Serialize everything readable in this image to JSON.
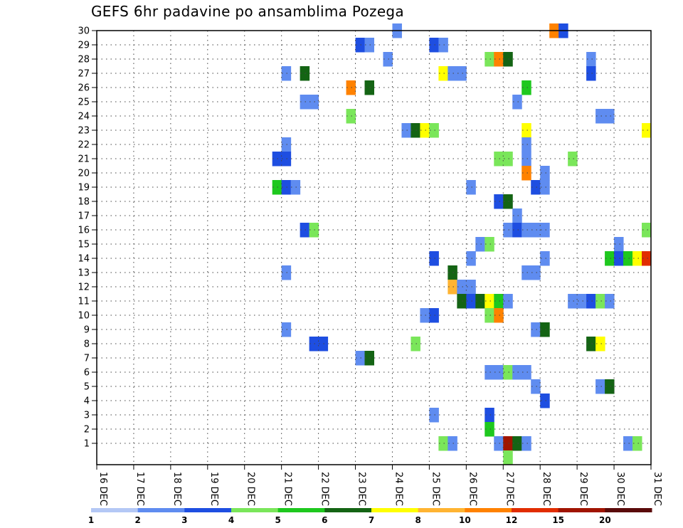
{
  "chart_data": {
    "type": "heatmap",
    "title": "GEFS 6hr padavine po ansamblima Pozega",
    "xlabel": "",
    "ylabel": "",
    "x_ticks": [
      "16 DEC",
      "17 DEC",
      "18 DEC",
      "19 DEC",
      "20 DEC",
      "21 DEC",
      "22 DEC",
      "23 DEC",
      "24 DEC",
      "25 DEC",
      "26 DEC",
      "27 DEC",
      "28 DEC",
      "29 DEC",
      "30 DEC",
      "31 DEC"
    ],
    "xlim": [
      "16 DEC 00Z",
      "31 DEC 00Z"
    ],
    "y_ticks": [
      1,
      2,
      3,
      4,
      5,
      6,
      7,
      8,
      9,
      10,
      11,
      12,
      13,
      14,
      15,
      16,
      17,
      18,
      19,
      20,
      21,
      22,
      23,
      24,
      25,
      26,
      27,
      28,
      29,
      30
    ],
    "ylim": [
      0,
      30
    ],
    "grid": true,
    "legend": {
      "position": "bottom",
      "labels": [
        "1",
        "2",
        "3",
        "4",
        "5",
        "6",
        "7",
        "8",
        "10",
        "12",
        "15",
        "20"
      ],
      "colors": [
        "#b4c8f5",
        "#5f8cf0",
        "#1e4ee1",
        "#7ae65a",
        "#1ec81e",
        "#146414",
        "#ffff00",
        "#ffb432",
        "#ff8200",
        "#e12d00",
        "#a01400",
        "#5a0a0a"
      ]
    },
    "cells": [
      {
        "m": 30,
        "d": 24.0,
        "v": 1
      },
      {
        "m": 30,
        "d": 28.25,
        "v": 8
      },
      {
        "m": 30,
        "d": 28.5,
        "v": 2
      },
      {
        "m": 29,
        "d": 23.0,
        "v": 2
      },
      {
        "m": 29,
        "d": 23.25,
        "v": 1
      },
      {
        "m": 29,
        "d": 25.0,
        "v": 2
      },
      {
        "m": 29,
        "d": 25.25,
        "v": 1
      },
      {
        "m": 28,
        "d": 23.75,
        "v": 1
      },
      {
        "m": 28,
        "d": 26.5,
        "v": 3
      },
      {
        "m": 28,
        "d": 26.75,
        "v": 8
      },
      {
        "m": 28,
        "d": 27.0,
        "v": 5
      },
      {
        "m": 28,
        "d": 29.25,
        "v": 1
      },
      {
        "m": 27,
        "d": 21.0,
        "v": 1
      },
      {
        "m": 27,
        "d": 21.5,
        "v": 5
      },
      {
        "m": 27,
        "d": 25.25,
        "v": 6
      },
      {
        "m": 27,
        "d": 25.5,
        "v": 1
      },
      {
        "m": 27,
        "d": 25.75,
        "v": 1
      },
      {
        "m": 27,
        "d": 29.25,
        "v": 2
      },
      {
        "m": 26,
        "d": 22.75,
        "v": 8
      },
      {
        "m": 26,
        "d": 23.25,
        "v": 5
      },
      {
        "m": 26,
        "d": 27.5,
        "v": 4
      },
      {
        "m": 25,
        "d": 21.5,
        "v": 1
      },
      {
        "m": 25,
        "d": 21.75,
        "v": 1
      },
      {
        "m": 25,
        "d": 27.25,
        "v": 1
      },
      {
        "m": 24,
        "d": 22.75,
        "v": 3
      },
      {
        "m": 24,
        "d": 29.5,
        "v": 1
      },
      {
        "m": 24,
        "d": 29.75,
        "v": 1
      },
      {
        "m": 23,
        "d": 24.25,
        "v": 1
      },
      {
        "m": 23,
        "d": 24.5,
        "v": 5
      },
      {
        "m": 23,
        "d": 24.75,
        "v": 6
      },
      {
        "m": 23,
        "d": 25.0,
        "v": 3
      },
      {
        "m": 23,
        "d": 27.5,
        "v": 6
      },
      {
        "m": 23,
        "d": 30.75,
        "v": 6
      },
      {
        "m": 22,
        "d": 21.0,
        "v": 1
      },
      {
        "m": 22,
        "d": 27.5,
        "v": 1
      },
      {
        "m": 21,
        "d": 20.75,
        "v": 2
      },
      {
        "m": 21,
        "d": 21.0,
        "v": 2
      },
      {
        "m": 21,
        "d": 26.75,
        "v": 3
      },
      {
        "m": 21,
        "d": 27.0,
        "v": 3
      },
      {
        "m": 21,
        "d": 27.5,
        "v": 1
      },
      {
        "m": 21,
        "d": 28.75,
        "v": 3
      },
      {
        "m": 20,
        "d": 27.5,
        "v": 8
      },
      {
        "m": 20,
        "d": 28.0,
        "v": 1
      },
      {
        "m": 19,
        "d": 20.75,
        "v": 4
      },
      {
        "m": 19,
        "d": 21.0,
        "v": 2
      },
      {
        "m": 19,
        "d": 21.25,
        "v": 1
      },
      {
        "m": 19,
        "d": 26.0,
        "v": 1
      },
      {
        "m": 19,
        "d": 27.75,
        "v": 2
      },
      {
        "m": 19,
        "d": 28.0,
        "v": 1
      },
      {
        "m": 18,
        "d": 26.75,
        "v": 2
      },
      {
        "m": 18,
        "d": 27.0,
        "v": 5
      },
      {
        "m": 17,
        "d": 27.25,
        "v": 1
      },
      {
        "m": 16,
        "d": 21.5,
        "v": 2
      },
      {
        "m": 16,
        "d": 21.75,
        "v": 3
      },
      {
        "m": 16,
        "d": 27.0,
        "v": 1
      },
      {
        "m": 16,
        "d": 27.25,
        "v": 2
      },
      {
        "m": 16,
        "d": 27.5,
        "v": 1
      },
      {
        "m": 16,
        "d": 27.75,
        "v": 1
      },
      {
        "m": 16,
        "d": 28.0,
        "v": 1
      },
      {
        "m": 16,
        "d": 30.75,
        "v": 3
      },
      {
        "m": 15,
        "d": 26.25,
        "v": 1
      },
      {
        "m": 15,
        "d": 26.5,
        "v": 3
      },
      {
        "m": 15,
        "d": 30.0,
        "v": 1
      },
      {
        "m": 14,
        "d": 25.0,
        "v": 2
      },
      {
        "m": 14,
        "d": 26.0,
        "v": 1
      },
      {
        "m": 14,
        "d": 28.0,
        "v": 1
      },
      {
        "m": 14,
        "d": 29.75,
        "v": 4
      },
      {
        "m": 14,
        "d": 30.0,
        "v": 2
      },
      {
        "m": 14,
        "d": 30.25,
        "v": 4
      },
      {
        "m": 14,
        "d": 30.5,
        "v": 6
      },
      {
        "m": 14,
        "d": 30.75,
        "v": 9
      },
      {
        "m": 13,
        "d": 21.0,
        "v": 1
      },
      {
        "m": 13,
        "d": 25.5,
        "v": 5
      },
      {
        "m": 13,
        "d": 27.5,
        "v": 1
      },
      {
        "m": 13,
        "d": 27.75,
        "v": 1
      },
      {
        "m": 12,
        "d": 25.5,
        "v": 7
      },
      {
        "m": 12,
        "d": 25.75,
        "v": 1
      },
      {
        "m": 12,
        "d": 26.0,
        "v": 1
      },
      {
        "m": 11,
        "d": 25.75,
        "v": 5
      },
      {
        "m": 11,
        "d": 26.0,
        "v": 2
      },
      {
        "m": 11,
        "d": 26.25,
        "v": 5
      },
      {
        "m": 11,
        "d": 26.5,
        "v": 6
      },
      {
        "m": 11,
        "d": 26.75,
        "v": 4
      },
      {
        "m": 11,
        "d": 27.0,
        "v": 1
      },
      {
        "m": 11,
        "d": 28.75,
        "v": 1
      },
      {
        "m": 11,
        "d": 29.0,
        "v": 1
      },
      {
        "m": 11,
        "d": 29.25,
        "v": 2
      },
      {
        "m": 11,
        "d": 29.5,
        "v": 3
      },
      {
        "m": 11,
        "d": 29.75,
        "v": 1
      },
      {
        "m": 10,
        "d": 24.75,
        "v": 1
      },
      {
        "m": 10,
        "d": 25.0,
        "v": 2
      },
      {
        "m": 10,
        "d": 26.5,
        "v": 3
      },
      {
        "m": 10,
        "d": 26.75,
        "v": 8
      },
      {
        "m": 9,
        "d": 21.0,
        "v": 1
      },
      {
        "m": 9,
        "d": 27.75,
        "v": 1
      },
      {
        "m": 9,
        "d": 28.0,
        "v": 5
      },
      {
        "m": 8,
        "d": 21.75,
        "v": 2
      },
      {
        "m": 8,
        "d": 22.0,
        "v": 2
      },
      {
        "m": 8,
        "d": 24.5,
        "v": 3
      },
      {
        "m": 8,
        "d": 29.25,
        "v": 5
      },
      {
        "m": 8,
        "d": 29.5,
        "v": 6
      },
      {
        "m": 7,
        "d": 23.0,
        "v": 1
      },
      {
        "m": 7,
        "d": 23.25,
        "v": 5
      },
      {
        "m": 6,
        "d": 26.5,
        "v": 1
      },
      {
        "m": 6,
        "d": 26.75,
        "v": 1
      },
      {
        "m": 6,
        "d": 27.0,
        "v": 3
      },
      {
        "m": 6,
        "d": 27.25,
        "v": 1
      },
      {
        "m": 6,
        "d": 27.5,
        "v": 1
      },
      {
        "m": 5,
        "d": 27.75,
        "v": 1
      },
      {
        "m": 5,
        "d": 29.5,
        "v": 1
      },
      {
        "m": 5,
        "d": 29.75,
        "v": 5
      },
      {
        "m": 4,
        "d": 28.0,
        "v": 2
      },
      {
        "m": 3,
        "d": 25.0,
        "v": 1
      },
      {
        "m": 3,
        "d": 26.5,
        "v": 2
      },
      {
        "m": 2,
        "d": 26.5,
        "v": 4
      },
      {
        "m": 1,
        "d": 25.25,
        "v": 3
      },
      {
        "m": 1,
        "d": 25.5,
        "v": 1
      },
      {
        "m": 1,
        "d": 26.75,
        "v": 1
      },
      {
        "m": 1,
        "d": 27.0,
        "v": 10
      },
      {
        "m": 1,
        "d": 27.25,
        "v": 5
      },
      {
        "m": 1,
        "d": 27.5,
        "v": 1
      },
      {
        "m": 1,
        "d": 30.25,
        "v": 1
      },
      {
        "m": 1,
        "d": 30.5,
        "v": 3
      },
      {
        "m": 0,
        "d": 27.0,
        "v": 3
      }
    ]
  }
}
